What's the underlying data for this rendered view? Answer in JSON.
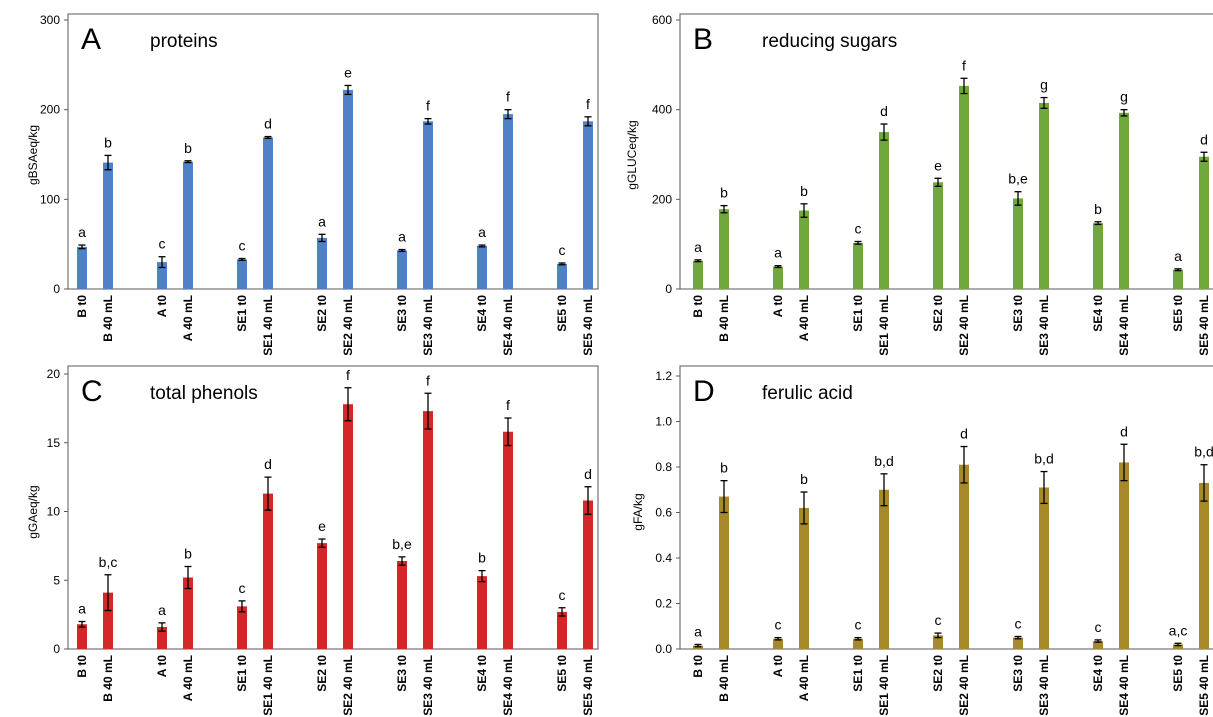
{
  "chart_data": [
    {
      "type": "bar",
      "panel_letter": "A",
      "title": "proteins",
      "ylabel": "gBSAeq/kg",
      "xlabel": "",
      "color": "#4f81c8",
      "ylim": [
        0,
        300
      ],
      "yticks": [
        "0",
        "100",
        "200",
        "300"
      ],
      "grid": false,
      "categories": [
        "B t0",
        "B 40 mL",
        "A t0",
        "A 40 mL",
        "SE1 t0",
        "SE1 40 mL",
        "SE2 t0",
        "SE2 40 mL",
        "SE3 t0",
        "SE3 40 mL",
        "SE4 t0",
        "SE4 40 mL",
        "SE5 t0",
        "SE5 40 mL"
      ],
      "values": [
        47,
        141,
        30,
        142,
        33,
        169,
        57,
        222,
        43,
        187,
        48,
        195,
        28,
        187
      ],
      "errors": [
        2,
        8,
        6,
        1,
        1,
        1,
        4,
        5,
        1,
        3,
        1,
        5,
        1,
        5
      ],
      "significance": [
        "a",
        "b",
        "c",
        "b",
        "c",
        "d",
        "a",
        "e",
        "a",
        "f",
        "a",
        "f",
        "c",
        "f"
      ]
    },
    {
      "type": "bar",
      "panel_letter": "B",
      "title": "reducing sugars",
      "ylabel": "gGLUCeq/kg",
      "xlabel": "",
      "color": "#70a83c",
      "ylim": [
        0,
        600
      ],
      "yticks": [
        "0",
        "200",
        "400",
        "600"
      ],
      "grid": false,
      "categories": [
        "B t0",
        "B 40 mL",
        "A t0",
        "A 40 mL",
        "SE1 t0",
        "SE1 40 mL",
        "SE2 t0",
        "SE2 40 mL",
        "SE3 t0",
        "SE3 40 mL",
        "SE4 t0",
        "SE4 40 mL",
        "SE5 t0",
        "SE5 40 mL"
      ],
      "values": [
        63,
        178,
        50,
        175,
        103,
        350,
        238,
        453,
        202,
        415,
        147,
        393,
        43,
        295
      ],
      "errors": [
        2,
        8,
        2,
        15,
        3,
        18,
        9,
        17,
        15,
        12,
        3,
        7,
        2,
        10
      ],
      "significance": [
        "a",
        "b",
        "a",
        "b",
        "c",
        "d",
        "e",
        "f",
        "b,e",
        "g",
        "b",
        "g",
        "a",
        "d"
      ]
    },
    {
      "type": "bar",
      "panel_letter": "C",
      "title": "total phenols",
      "ylabel": "gGAeq/kg",
      "xlabel": "",
      "color": "#d42828",
      "ylim": [
        0,
        20
      ],
      "yticks": [
        "0",
        "5",
        "10",
        "15",
        "20"
      ],
      "grid": false,
      "categories": [
        "B t0",
        "B 40 mL",
        "A t0",
        "A 40 mL",
        "SE1 t0",
        "SE1 40 mL",
        "SE2 t0",
        "SE2 40 mL",
        "SE3 t0",
        "SE3 40 mL",
        "SE4 t0",
        "SE4 40 mL",
        "SE5 t0",
        "SE5 40 mL"
      ],
      "values": [
        1.8,
        4.1,
        1.6,
        5.2,
        3.1,
        11.3,
        7.7,
        17.8,
        6.4,
        17.3,
        5.3,
        15.8,
        2.7,
        10.8
      ],
      "errors": [
        0.2,
        1.3,
        0.3,
        0.8,
        0.4,
        1.2,
        0.3,
        1.2,
        0.3,
        1.3,
        0.4,
        1.0,
        0.3,
        1.0
      ],
      "significance": [
        "a",
        "b,c",
        "a",
        "b",
        "c",
        "d",
        "e",
        "f",
        "b,e",
        "f",
        "b",
        "f",
        "c",
        "d"
      ]
    },
    {
      "type": "bar",
      "panel_letter": "D",
      "title": "ferulic acid",
      "ylabel": "gFA/kg",
      "xlabel": "",
      "color": "#a8892a",
      "ylim": [
        0,
        1.2
      ],
      "yticks": [
        "0.0",
        "0.2",
        "0.4",
        "0.6",
        "0.8",
        "1.0",
        "1.2"
      ],
      "grid": false,
      "categories": [
        "B t0",
        "B 40 mL",
        "A t0",
        "A 40 mL",
        "SE1 t0",
        "SE1 40 mL",
        "SE2 t0",
        "SE2 40 mL",
        "SE3 t0",
        "SE3 40 mL",
        "SE4 t0",
        "SE4 40 mL",
        "SE5 t0",
        "SE5 40 mL"
      ],
      "values": [
        0.015,
        0.67,
        0.045,
        0.62,
        0.045,
        0.7,
        0.06,
        0.81,
        0.05,
        0.71,
        0.035,
        0.82,
        0.02,
        0.73
      ],
      "errors": [
        0.005,
        0.07,
        0.005,
        0.07,
        0.005,
        0.07,
        0.01,
        0.08,
        0.005,
        0.07,
        0.005,
        0.08,
        0.005,
        0.08
      ],
      "significance": [
        "a",
        "b",
        "c",
        "b",
        "c",
        "b,d",
        "c",
        "d",
        "c",
        "b,d",
        "c",
        "d",
        "a,c",
        "b,d"
      ]
    }
  ]
}
